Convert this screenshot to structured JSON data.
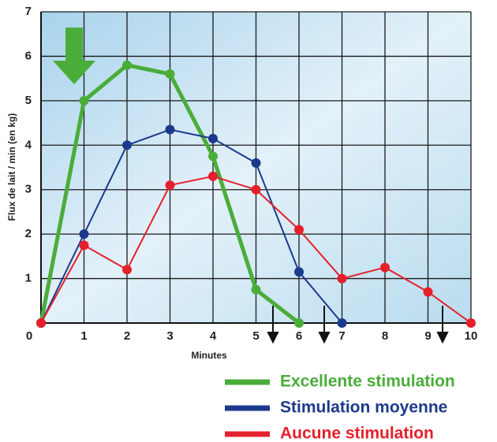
{
  "chart_data": {
    "type": "line",
    "xlabel": "Minutes",
    "ylabel": "Flux de lait / min (en kg)",
    "x": [
      0,
      1,
      2,
      3,
      4,
      5,
      6,
      7,
      8,
      9,
      10
    ],
    "series": [
      {
        "name": "Excellente stimulation",
        "color": "#4aad3a",
        "values": [
          0,
          5,
          5.8,
          5.6,
          3.75,
          0.75,
          0,
          null,
          null,
          null,
          null
        ]
      },
      {
        "name": "Stimulation moyenne",
        "color": "#1c3a8c",
        "values": [
          0,
          2,
          4,
          4.35,
          4.15,
          3.6,
          1.15,
          0,
          null,
          null,
          null
        ]
      },
      {
        "name": "Aucune stimulation",
        "color": "#e4202c",
        "values": [
          0,
          1.75,
          1.2,
          3.1,
          3.3,
          3,
          2.1,
          1,
          1.25,
          0.7,
          0
        ]
      }
    ],
    "xlim": [
      0,
      10
    ],
    "ylim": [
      0,
      7
    ],
    "xticks": [
      0,
      1,
      2,
      3,
      4,
      5,
      6,
      7,
      8,
      9,
      10
    ],
    "yticks": [
      1,
      2,
      3,
      4,
      5,
      6,
      7
    ],
    "grid": true
  }
}
